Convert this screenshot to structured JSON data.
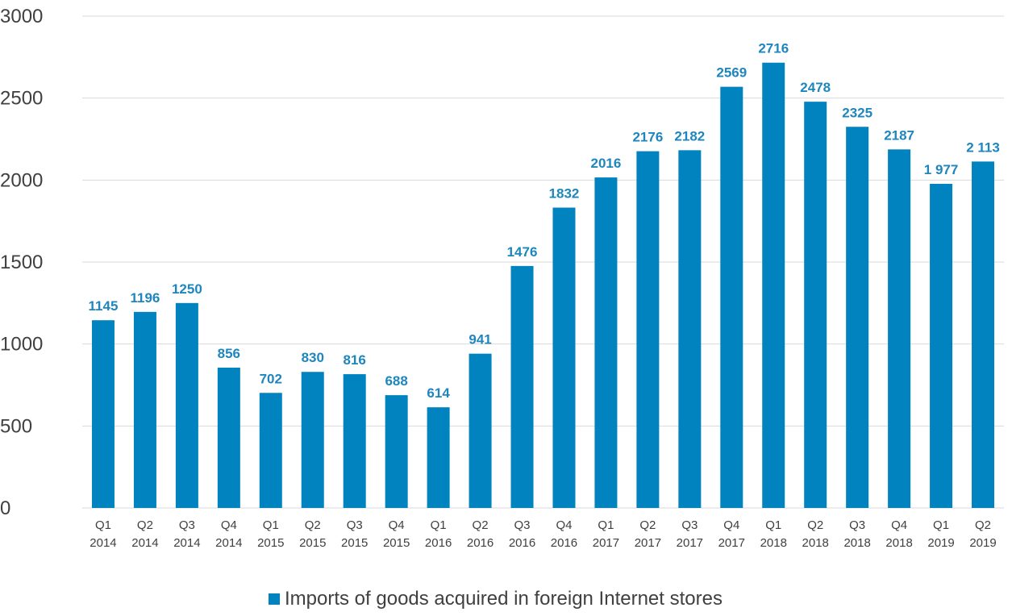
{
  "chart_data": {
    "type": "bar",
    "categories": [
      "Q1 2014",
      "Q2 2014",
      "Q3 2014",
      "Q4 2014",
      "Q1 2015",
      "Q2 2015",
      "Q3 2015",
      "Q4 2015",
      "Q1 2016",
      "Q2 2016",
      "Q3 2016",
      "Q4 2016",
      "Q1 2017",
      "Q2 2017",
      "Q3 2017",
      "Q4 2017",
      "Q1 2018",
      "Q2 2018",
      "Q3 2018",
      "Q4 2018",
      "Q1 2019",
      "Q2 2019"
    ],
    "category_lines": [
      [
        "Q1",
        "2014"
      ],
      [
        "Q2",
        "2014"
      ],
      [
        "Q3",
        "2014"
      ],
      [
        "Q4",
        "2014"
      ],
      [
        "Q1",
        "2015"
      ],
      [
        "Q2",
        "2015"
      ],
      [
        "Q3",
        "2015"
      ],
      [
        "Q4",
        "2015"
      ],
      [
        "Q1",
        "2016"
      ],
      [
        "Q2",
        "2016"
      ],
      [
        "Q3",
        "2016"
      ],
      [
        "Q4",
        "2016"
      ],
      [
        "Q1",
        "2017"
      ],
      [
        "Q2",
        "2017"
      ],
      [
        "Q3",
        "2017"
      ],
      [
        "Q4",
        "2017"
      ],
      [
        "Q1",
        "2018"
      ],
      [
        "Q2",
        "2018"
      ],
      [
        "Q3",
        "2018"
      ],
      [
        "Q4",
        "2018"
      ],
      [
        "Q1",
        "2019"
      ],
      [
        "Q2",
        "2019"
      ]
    ],
    "series": [
      {
        "name": "Imports of goods acquired in foreign Internet stores",
        "values": [
          1145,
          1196,
          1250,
          856,
          702,
          830,
          816,
          688,
          614,
          941,
          1476,
          1832,
          2016,
          2176,
          2182,
          2569,
          2716,
          2478,
          2325,
          2187,
          1977,
          2113
        ],
        "labels": [
          "1145",
          "1196",
          "1250",
          "856",
          "702",
          "830",
          "816",
          "688",
          "614",
          "941",
          "1476",
          "1832",
          "2016",
          "2176",
          "2182",
          "2569",
          "2716",
          "2478",
          "2325",
          "2187",
          "1 977",
          "2 113"
        ]
      }
    ],
    "ylim": [
      0,
      3000
    ],
    "yticks": [
      "0",
      "500",
      "1000",
      "1500",
      "2000",
      "2500",
      "3000"
    ],
    "grid": true,
    "legend_position": "bottom",
    "bar_color": "#0083bf",
    "label_color": "#1f86bd",
    "grid_color": "#d9d9d9",
    "text_color": "#404040"
  }
}
